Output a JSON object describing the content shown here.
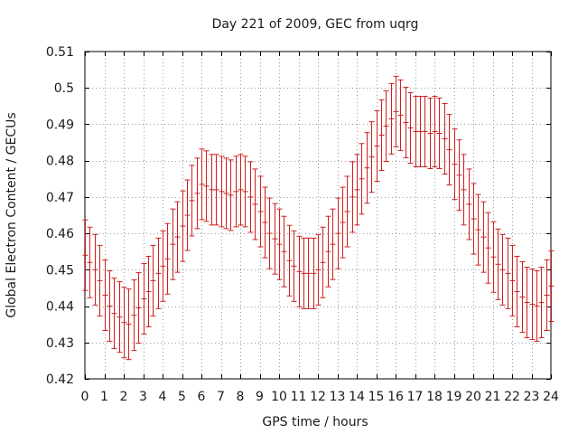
{
  "chart_data": {
    "type": "errorbar",
    "title": "Day 221 of 2009, GEC from uqrg",
    "xlabel": "GPS time / hours",
    "ylabel": "Global Electron Content / GECUs",
    "xlim": [
      0,
      24
    ],
    "ylim": [
      0.42,
      0.51
    ],
    "xticks": [
      0,
      1,
      2,
      3,
      4,
      5,
      6,
      7,
      8,
      9,
      10,
      11,
      12,
      13,
      14,
      15,
      16,
      17,
      18,
      19,
      20,
      21,
      22,
      23,
      24
    ],
    "yticks": [
      0.42,
      0.43,
      0.44,
      0.45,
      0.46,
      0.47,
      0.48,
      0.49,
      0.5,
      0.51
    ],
    "grid": true,
    "series_color": "#cc1f1f",
    "points": [
      {
        "x": 0.0,
        "y": 0.454,
        "err": 0.0097
      },
      {
        "x": 0.25,
        "y": 0.452,
        "err": 0.0097
      },
      {
        "x": 0.5,
        "y": 0.45,
        "err": 0.0097
      },
      {
        "x": 0.75,
        "y": 0.447,
        "err": 0.0097
      },
      {
        "x": 1.0,
        "y": 0.443,
        "err": 0.0097
      },
      {
        "x": 1.25,
        "y": 0.44,
        "err": 0.0097
      },
      {
        "x": 1.5,
        "y": 0.438,
        "err": 0.0097
      },
      {
        "x": 1.75,
        "y": 0.437,
        "err": 0.0097
      },
      {
        "x": 2.0,
        "y": 0.4355,
        "err": 0.0097
      },
      {
        "x": 2.25,
        "y": 0.435,
        "err": 0.0097
      },
      {
        "x": 2.5,
        "y": 0.4375,
        "err": 0.0097
      },
      {
        "x": 2.75,
        "y": 0.4395,
        "err": 0.0097
      },
      {
        "x": 3.0,
        "y": 0.442,
        "err": 0.0097
      },
      {
        "x": 3.25,
        "y": 0.444,
        "err": 0.0097
      },
      {
        "x": 3.5,
        "y": 0.447,
        "err": 0.0097
      },
      {
        "x": 3.75,
        "y": 0.449,
        "err": 0.0097
      },
      {
        "x": 4.0,
        "y": 0.451,
        "err": 0.0097
      },
      {
        "x": 4.25,
        "y": 0.453,
        "err": 0.0097
      },
      {
        "x": 4.5,
        "y": 0.457,
        "err": 0.0097
      },
      {
        "x": 4.75,
        "y": 0.459,
        "err": 0.0097
      },
      {
        "x": 5.0,
        "y": 0.462,
        "err": 0.0097
      },
      {
        "x": 5.25,
        "y": 0.465,
        "err": 0.0097
      },
      {
        "x": 5.5,
        "y": 0.469,
        "err": 0.0097
      },
      {
        "x": 5.75,
        "y": 0.471,
        "err": 0.0097
      },
      {
        "x": 6.0,
        "y": 0.4735,
        "err": 0.0097
      },
      {
        "x": 6.25,
        "y": 0.473,
        "err": 0.0097
      },
      {
        "x": 6.5,
        "y": 0.472,
        "err": 0.0097
      },
      {
        "x": 6.75,
        "y": 0.472,
        "err": 0.0097
      },
      {
        "x": 7.0,
        "y": 0.4715,
        "err": 0.0097
      },
      {
        "x": 7.25,
        "y": 0.471,
        "err": 0.0097
      },
      {
        "x": 7.5,
        "y": 0.4705,
        "err": 0.0097
      },
      {
        "x": 7.75,
        "y": 0.4715,
        "err": 0.0097
      },
      {
        "x": 8.0,
        "y": 0.472,
        "err": 0.0097
      },
      {
        "x": 8.25,
        "y": 0.4715,
        "err": 0.0097
      },
      {
        "x": 8.5,
        "y": 0.47,
        "err": 0.0097
      },
      {
        "x": 8.75,
        "y": 0.468,
        "err": 0.0097
      },
      {
        "x": 9.0,
        "y": 0.466,
        "err": 0.0097
      },
      {
        "x": 9.25,
        "y": 0.463,
        "err": 0.0097
      },
      {
        "x": 9.5,
        "y": 0.46,
        "err": 0.0097
      },
      {
        "x": 9.75,
        "y": 0.4585,
        "err": 0.0097
      },
      {
        "x": 10.0,
        "y": 0.457,
        "err": 0.0097
      },
      {
        "x": 10.25,
        "y": 0.455,
        "err": 0.0097
      },
      {
        "x": 10.5,
        "y": 0.4525,
        "err": 0.0097
      },
      {
        "x": 10.75,
        "y": 0.451,
        "err": 0.0097
      },
      {
        "x": 11.0,
        "y": 0.4495,
        "err": 0.0097
      },
      {
        "x": 11.25,
        "y": 0.449,
        "err": 0.0097
      },
      {
        "x": 11.5,
        "y": 0.449,
        "err": 0.0097
      },
      {
        "x": 11.75,
        "y": 0.449,
        "err": 0.0097
      },
      {
        "x": 12.0,
        "y": 0.45,
        "err": 0.0097
      },
      {
        "x": 12.25,
        "y": 0.452,
        "err": 0.0097
      },
      {
        "x": 12.5,
        "y": 0.455,
        "err": 0.0097
      },
      {
        "x": 12.75,
        "y": 0.457,
        "err": 0.0097
      },
      {
        "x": 13.0,
        "y": 0.46,
        "err": 0.0097
      },
      {
        "x": 13.25,
        "y": 0.463,
        "err": 0.0097
      },
      {
        "x": 13.5,
        "y": 0.466,
        "err": 0.0097
      },
      {
        "x": 13.75,
        "y": 0.47,
        "err": 0.0097
      },
      {
        "x": 14.0,
        "y": 0.472,
        "err": 0.0097
      },
      {
        "x": 14.25,
        "y": 0.475,
        "err": 0.0097
      },
      {
        "x": 14.5,
        "y": 0.478,
        "err": 0.0097
      },
      {
        "x": 14.75,
        "y": 0.481,
        "err": 0.0097
      },
      {
        "x": 15.0,
        "y": 0.484,
        "err": 0.0097
      },
      {
        "x": 15.25,
        "y": 0.487,
        "err": 0.0097
      },
      {
        "x": 15.5,
        "y": 0.4895,
        "err": 0.0097
      },
      {
        "x": 15.75,
        "y": 0.4915,
        "err": 0.0097
      },
      {
        "x": 16.0,
        "y": 0.4935,
        "err": 0.0097
      },
      {
        "x": 16.25,
        "y": 0.4925,
        "err": 0.0097
      },
      {
        "x": 16.5,
        "y": 0.4905,
        "err": 0.0097
      },
      {
        "x": 16.75,
        "y": 0.489,
        "err": 0.0097
      },
      {
        "x": 17.0,
        "y": 0.488,
        "err": 0.0097
      },
      {
        "x": 17.25,
        "y": 0.488,
        "err": 0.0097
      },
      {
        "x": 17.5,
        "y": 0.488,
        "err": 0.0097
      },
      {
        "x": 17.75,
        "y": 0.4875,
        "err": 0.0097
      },
      {
        "x": 18.0,
        "y": 0.488,
        "err": 0.0097
      },
      {
        "x": 18.25,
        "y": 0.4875,
        "err": 0.0097
      },
      {
        "x": 18.5,
        "y": 0.486,
        "err": 0.0097
      },
      {
        "x": 18.75,
        "y": 0.483,
        "err": 0.0097
      },
      {
        "x": 19.0,
        "y": 0.479,
        "err": 0.0097
      },
      {
        "x": 19.25,
        "y": 0.476,
        "err": 0.0097
      },
      {
        "x": 19.5,
        "y": 0.472,
        "err": 0.0097
      },
      {
        "x": 19.75,
        "y": 0.468,
        "err": 0.0097
      },
      {
        "x": 20.0,
        "y": 0.464,
        "err": 0.0097
      },
      {
        "x": 20.25,
        "y": 0.461,
        "err": 0.0097
      },
      {
        "x": 20.5,
        "y": 0.459,
        "err": 0.0097
      },
      {
        "x": 20.75,
        "y": 0.456,
        "err": 0.0097
      },
      {
        "x": 21.0,
        "y": 0.4535,
        "err": 0.0097
      },
      {
        "x": 21.25,
        "y": 0.4515,
        "err": 0.0097
      },
      {
        "x": 21.5,
        "y": 0.45,
        "err": 0.0097
      },
      {
        "x": 21.75,
        "y": 0.449,
        "err": 0.0097
      },
      {
        "x": 22.0,
        "y": 0.447,
        "err": 0.0097
      },
      {
        "x": 22.25,
        "y": 0.444,
        "err": 0.0097
      },
      {
        "x": 22.5,
        "y": 0.4425,
        "err": 0.0097
      },
      {
        "x": 22.75,
        "y": 0.441,
        "err": 0.0097
      },
      {
        "x": 23.0,
        "y": 0.4405,
        "err": 0.0097
      },
      {
        "x": 23.25,
        "y": 0.44,
        "err": 0.0097
      },
      {
        "x": 23.5,
        "y": 0.441,
        "err": 0.0097
      },
      {
        "x": 23.75,
        "y": 0.443,
        "err": 0.0097
      },
      {
        "x": 24.0,
        "y": 0.4455,
        "err": 0.0097
      }
    ]
  }
}
